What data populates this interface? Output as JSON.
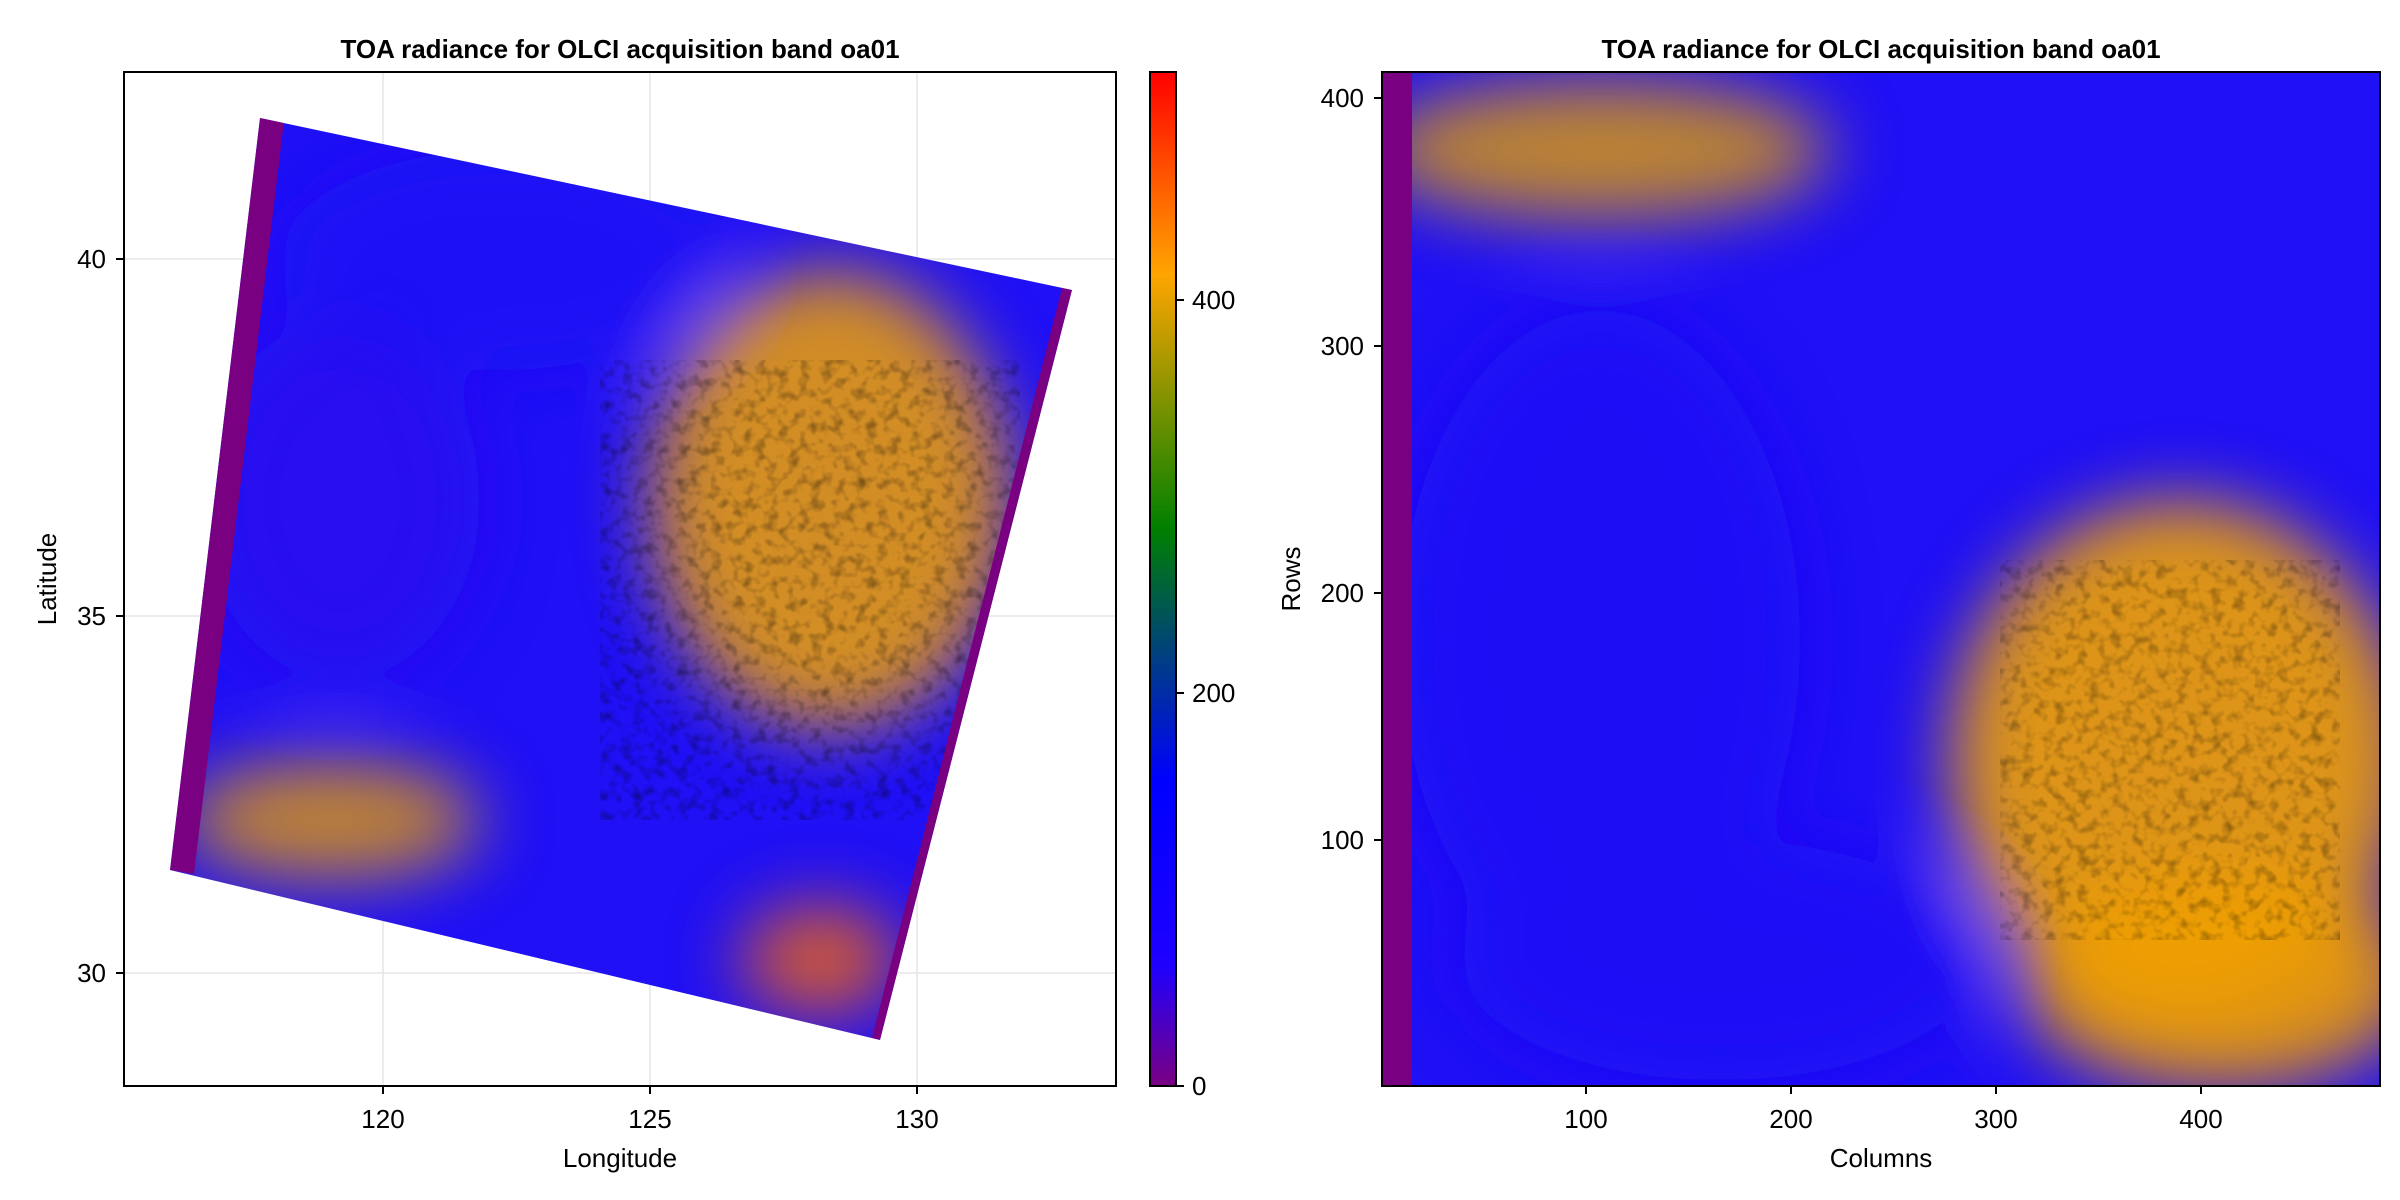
{
  "chart_data": [
    {
      "type": "heatmap",
      "panel": "geographic",
      "title": "TOA radiance for OLCI acquisition band oa01",
      "xlabel": "Longitude",
      "ylabel": "Latitude",
      "xlim": [
        114.6,
        133.2
      ],
      "ylim": [
        28.4,
        42.6
      ],
      "xticks": [
        120,
        125,
        130
      ],
      "yticks": [
        30,
        35,
        40
      ],
      "grid": true,
      "swath_corners": {
        "top_left": [
          116.2,
          42.0
        ],
        "top_right": [
          132.9,
          39.6
        ],
        "bottom_right": [
          129.2,
          29.1
        ],
        "bottom_left": [
          115.0,
          31.5
        ]
      },
      "fill_strip": "left and right swath edges at 0",
      "features": [
        {
          "label": "clear sea (blue)",
          "value": 130
        },
        {
          "label": "cloud band west (orange)",
          "value": 400
        },
        {
          "label": "cloud mass center-east (orange)",
          "value": 420
        },
        {
          "label": "bright cloud cores (red-orange)",
          "value": 470
        }
      ]
    },
    {
      "type": "heatmap",
      "panel": "image-grid",
      "title": "TOA radiance for OLCI acquisition band oa01",
      "xlabel": "Columns",
      "ylabel": "Rows",
      "xlim": [
        1,
        487
      ],
      "ylim": [
        1,
        412
      ],
      "xticks": [
        100,
        200,
        300,
        400
      ],
      "yticks": [
        100,
        200,
        300,
        400
      ],
      "grid": false,
      "fill_strip": "left edge columns 1-15 at 0"
    }
  ],
  "colorbar": {
    "ticks": [
      0,
      200,
      400
    ],
    "range": [
      0,
      520
    ],
    "colors": [
      "#7a0082",
      "#1e00ff",
      "#0000ff",
      "#008000",
      "#ffa500",
      "#ff0000"
    ],
    "stops": [
      0,
      0.12,
      0.3,
      0.55,
      0.8,
      1.0
    ]
  }
}
